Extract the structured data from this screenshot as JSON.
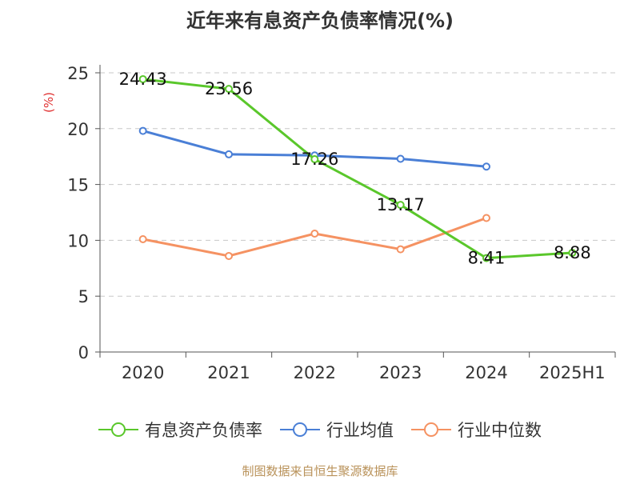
{
  "chart_data": {
    "type": "line",
    "title": "近年来有息资产负债率情况(%)",
    "ylabel": "(%)",
    "categories": [
      "2020",
      "2021",
      "2022",
      "2023",
      "2024",
      "2025H1"
    ],
    "ylim": [
      0,
      25
    ],
    "yticks": [
      0,
      5,
      10,
      15,
      20,
      25
    ],
    "grid": true,
    "legend_position": "bottom",
    "series": [
      {
        "name": "有息资产负债率",
        "color": "#5ac72b",
        "values": [
          24.43,
          23.56,
          17.26,
          13.17,
          8.41,
          8.88
        ],
        "show_labels": true
      },
      {
        "name": "行业均值",
        "color": "#4a7fd6",
        "values": [
          19.8,
          17.7,
          17.6,
          17.3,
          16.6,
          null
        ],
        "show_labels": false
      },
      {
        "name": "行业中位数",
        "color": "#f59262",
        "values": [
          10.1,
          8.6,
          10.6,
          9.2,
          12.0,
          null
        ],
        "show_labels": false
      }
    ]
  },
  "source_text": "制图数据来自恒生聚源数据库"
}
